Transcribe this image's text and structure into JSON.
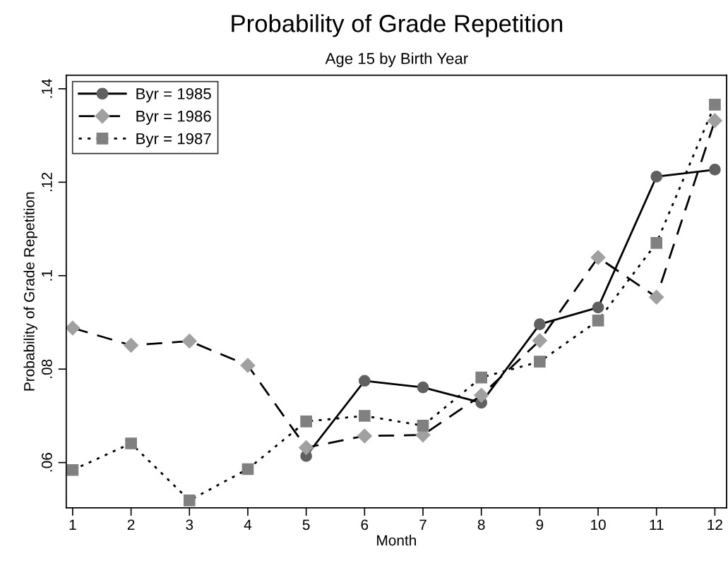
{
  "chart_data": {
    "type": "line",
    "title": "Probability of Grade Repetition",
    "subtitle": "Age 15 by Birth Year",
    "xlabel": "Month",
    "ylabel": "Probability of Grade Repetition",
    "x": [
      1,
      2,
      3,
      4,
      5,
      6,
      7,
      8,
      9,
      10,
      11,
      12
    ],
    "series": [
      {
        "name": "Byr = 1985",
        "color": "#606060",
        "marker": "circle",
        "line_style": "solid",
        "values": [
          null,
          null,
          null,
          null,
          0.0614,
          0.0775,
          0.0761,
          0.0728,
          0.0896,
          0.0932,
          0.1212,
          0.1227
        ]
      },
      {
        "name": "Byr = 1986",
        "color": "#a0a0a0",
        "marker": "diamond",
        "line_style": "dashed",
        "values": [
          0.0888,
          0.0851,
          0.086,
          0.0808,
          0.0632,
          0.0657,
          0.0659,
          0.0744,
          0.0861,
          0.1039,
          0.0954,
          0.1332
        ]
      },
      {
        "name": "Byr = 1987",
        "color": "#808080",
        "marker": "square",
        "line_style": "dotted",
        "values": [
          0.0584,
          0.0641,
          0.0519,
          0.0586,
          0.0688,
          0.07,
          0.0679,
          0.0782,
          0.0816,
          0.0904,
          0.107,
          0.1366
        ]
      }
    ],
    "xlim": [
      0.89,
      12.2
    ],
    "xticks": [
      1,
      2,
      3,
      4,
      5,
      6,
      7,
      8,
      9,
      10,
      11,
      12
    ],
    "ylim": [
      0.0503,
      0.1429
    ],
    "yticks": [
      {
        "value": 0.06,
        "label": ".06"
      },
      {
        "value": 0.08,
        "label": ".08"
      },
      {
        "value": 0.1,
        "label": ".1"
      },
      {
        "value": 0.12,
        "label": ".12"
      },
      {
        "value": 0.14,
        "label": ".14"
      }
    ],
    "grid": false,
    "legend": "top left"
  }
}
